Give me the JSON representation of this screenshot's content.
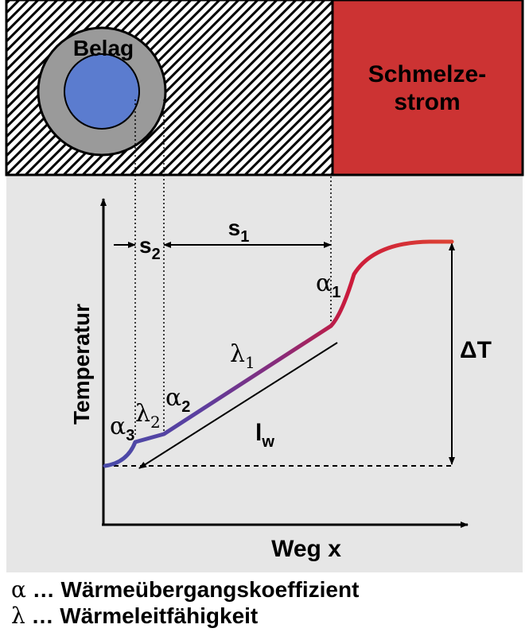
{
  "top": {
    "coating_label": "Belag",
    "melt_label_line1": "Schmelze-",
    "melt_label_line2": "strom",
    "colors": {
      "melt": "#cc3333",
      "pipe": "#5b7ccf",
      "coating": "#9a9a9a",
      "lower_bg": "#e6e6e6"
    }
  },
  "axes": {
    "y_label": "Temperatur",
    "x_label": "Weg x"
  },
  "dimensions": {
    "s1": {
      "base": "s",
      "sub": "1"
    },
    "s2": {
      "base": "s",
      "sub": "2"
    },
    "delta_t": "ΔT",
    "lw": {
      "base": "l",
      "sub": "w"
    }
  },
  "curve_labels": {
    "alpha1": {
      "base": "α",
      "sub": "1"
    },
    "alpha2": {
      "base": "α",
      "sub": "2"
    },
    "alpha3": {
      "base": "α",
      "sub": "3"
    },
    "lambda1": {
      "base": "λ",
      "sub": "1"
    },
    "lambda2": {
      "base": "λ",
      "sub": "2"
    }
  },
  "legend": [
    {
      "symbol": "α",
      "text": " … Wärmeübergangskoeffizient"
    },
    {
      "symbol": "λ",
      "text": " … Wärmeleitfähigkeit"
    }
  ]
}
